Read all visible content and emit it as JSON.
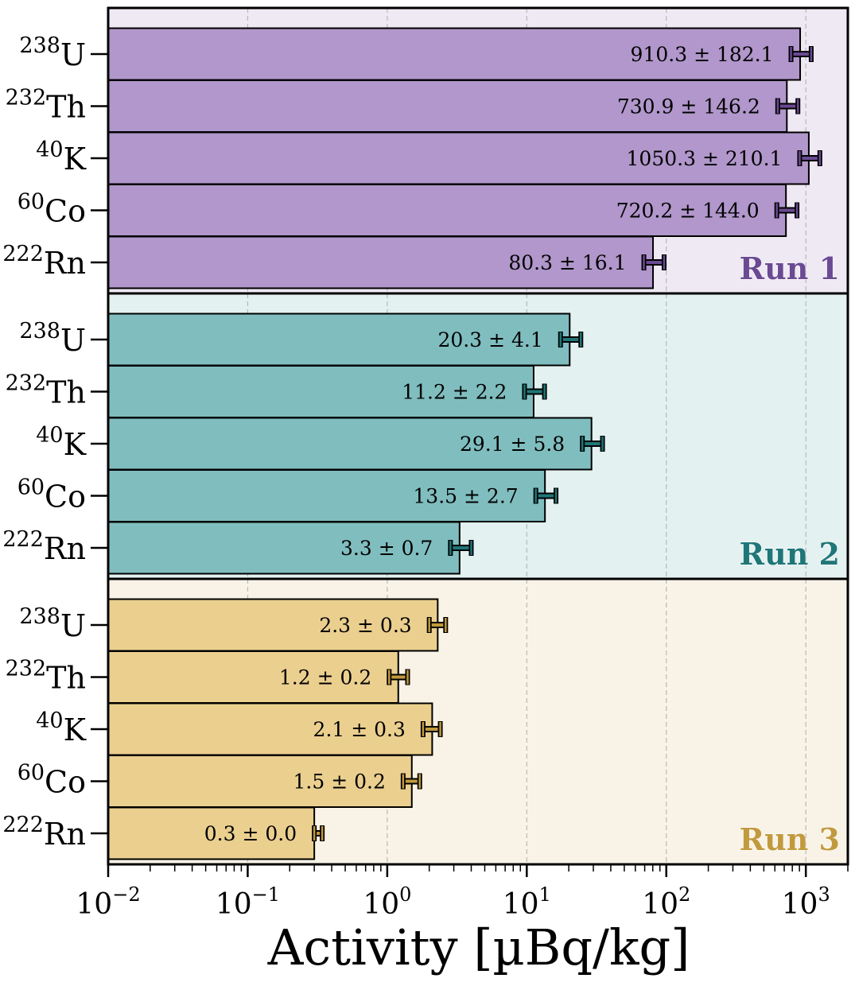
{
  "chart_data": {
    "type": "bar",
    "orientation": "horizontal",
    "x_scale": "log",
    "xlim": [
      0.01,
      2000
    ],
    "xlabel": "Activity [µBq/kg]",
    "x_ticks": [
      {
        "value": 0.01,
        "base": "10",
        "exp": "−2"
      },
      {
        "value": 0.1,
        "base": "10",
        "exp": "−1"
      },
      {
        "value": 1,
        "base": "10",
        "exp": "0"
      },
      {
        "value": 10,
        "base": "10",
        "exp": "1"
      },
      {
        "value": 100,
        "base": "10",
        "exp": "2"
      },
      {
        "value": 1000,
        "base": "10",
        "exp": "3"
      }
    ],
    "grid": "vertical dashed at major ticks",
    "categories": [
      {
        "mass": "238",
        "symbol": "U"
      },
      {
        "mass": "232",
        "symbol": "Th"
      },
      {
        "mass": "40",
        "symbol": "K"
      },
      {
        "mass": "60",
        "symbol": "Co"
      },
      {
        "mass": "222",
        "symbol": "Rn"
      }
    ],
    "panels": [
      {
        "name": "Run 1",
        "bar_color": "#b197cb",
        "bg_color": "#efe9f4",
        "accent_color": "#6a4a92",
        "values": [
          910.3,
          730.9,
          1050.3,
          720.2,
          80.3
        ],
        "errors": [
          182.1,
          146.2,
          210.1,
          144.0,
          16.1
        ],
        "labels": [
          "910.3 ± 182.1",
          "730.9 ± 146.2",
          "1050.3 ± 210.1",
          "720.2 ± 144.0",
          "80.3 ± 16.1"
        ]
      },
      {
        "name": "Run 2",
        "bar_color": "#80bdbf",
        "bg_color": "#e3f1f0",
        "accent_color": "#1f7678",
        "values": [
          20.3,
          11.2,
          29.1,
          13.5,
          3.3
        ],
        "errors": [
          4.1,
          2.2,
          5.8,
          2.7,
          0.7
        ],
        "labels": [
          "20.3 ± 4.1",
          "11.2 ± 2.2",
          "29.1 ± 5.8",
          "13.5 ± 2.7",
          "3.3 ± 0.7"
        ]
      },
      {
        "name": "Run 3",
        "bar_color": "#ebcf8f",
        "bg_color": "#f9f3e7",
        "accent_color": "#c29a3e",
        "values": [
          2.3,
          1.2,
          2.1,
          1.5,
          0.3
        ],
        "errors": [
          0.3,
          0.2,
          0.3,
          0.2,
          0.0
        ],
        "labels": [
          "2.3 ± 0.3",
          "1.2 ± 0.2",
          "2.1 ± 0.3",
          "1.5 ± 0.2",
          "0.3 ± 0.0"
        ]
      }
    ]
  }
}
